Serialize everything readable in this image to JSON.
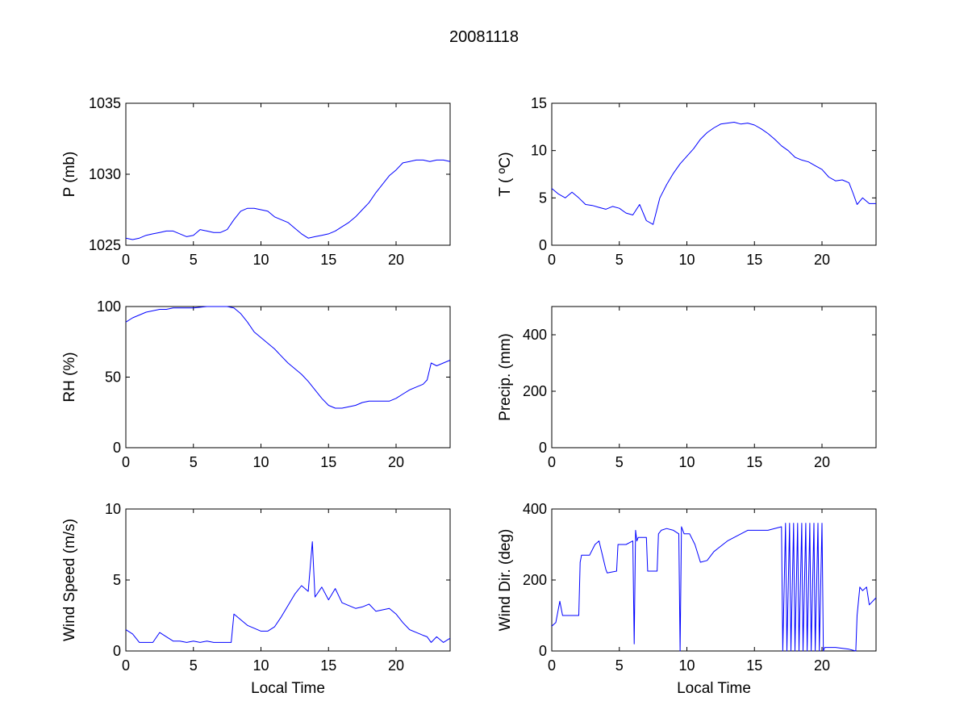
{
  "figure_title": "20081118",
  "line_color": "#0000ff",
  "chart_data": [
    {
      "type": "line",
      "id": "pressure",
      "title": "",
      "xlabel": "",
      "ylabel": "P (mb)",
      "xlim": [
        0,
        24
      ],
      "ylim": [
        1025,
        1035
      ],
      "xticks": [
        0,
        5,
        10,
        15,
        20
      ],
      "yticks": [
        1025,
        1030,
        1035
      ],
      "grid": false,
      "series": [
        {
          "x": [
            0,
            0.5,
            1,
            1.5,
            2,
            2.5,
            3,
            3.5,
            4,
            4.5,
            5,
            5.5,
            6,
            6.5,
            7,
            7.5,
            8,
            8.5,
            9,
            9.5,
            10,
            10.5,
            11,
            11.5,
            12,
            12.5,
            13,
            13.5,
            14,
            14.5,
            15,
            15.5,
            16,
            16.5,
            17,
            17.5,
            18,
            18.5,
            19,
            19.5,
            20,
            20.5,
            21,
            21.5,
            22,
            22.5,
            23,
            23.5,
            24
          ],
          "y": [
            1025.5,
            1025.4,
            1025.5,
            1025.7,
            1025.8,
            1025.9,
            1026.0,
            1026.0,
            1025.8,
            1025.6,
            1025.7,
            1026.1,
            1026.0,
            1025.9,
            1025.9,
            1026.1,
            1026.8,
            1027.4,
            1027.6,
            1027.6,
            1027.5,
            1027.4,
            1027.0,
            1026.8,
            1026.6,
            1026.2,
            1025.8,
            1025.5,
            1025.6,
            1025.7,
            1025.8,
            1026.0,
            1026.3,
            1026.6,
            1027.0,
            1027.5,
            1028.0,
            1028.7,
            1029.3,
            1029.9,
            1030.3,
            1030.8,
            1030.9,
            1031.0,
            1031.0,
            1030.9,
            1031.0,
            1031.0,
            1030.9
          ]
        }
      ]
    },
    {
      "type": "line",
      "id": "temperature",
      "title": "",
      "xlabel": "",
      "ylabel": "T ( ºC)",
      "xlim": [
        0,
        24
      ],
      "ylim": [
        0,
        15
      ],
      "xticks": [
        0,
        5,
        10,
        15,
        20
      ],
      "yticks": [
        0,
        5,
        10,
        15
      ],
      "grid": false,
      "series": [
        {
          "x": [
            0,
            0.5,
            1,
            1.5,
            2,
            2.5,
            3,
            3.5,
            4,
            4.5,
            5,
            5.5,
            6,
            6.5,
            7,
            7.5,
            8,
            8.5,
            9,
            9.5,
            10,
            10.5,
            11,
            11.5,
            12,
            12.5,
            13,
            13.5,
            14,
            14.5,
            15,
            15.5,
            16,
            16.5,
            17,
            17.5,
            18,
            18.5,
            19,
            19.5,
            20,
            20.5,
            21,
            21.5,
            22,
            22.3,
            22.6,
            23,
            23.5,
            24
          ],
          "y": [
            6.0,
            5.4,
            5.0,
            5.6,
            5.0,
            4.3,
            4.2,
            4.0,
            3.8,
            4.1,
            3.9,
            3.4,
            3.2,
            4.3,
            2.6,
            2.2,
            5.0,
            6.4,
            7.6,
            8.6,
            9.4,
            10.2,
            11.2,
            11.9,
            12.4,
            12.8,
            12.9,
            13.0,
            12.8,
            12.9,
            12.7,
            12.3,
            11.8,
            11.2,
            10.5,
            10.0,
            9.3,
            9.0,
            8.8,
            8.4,
            8.0,
            7.2,
            6.8,
            6.9,
            6.6,
            5.5,
            4.3,
            5.0,
            4.4,
            4.4
          ]
        }
      ]
    },
    {
      "type": "line",
      "id": "humidity",
      "title": "",
      "xlabel": "",
      "ylabel": "RH (%)",
      "xlim": [
        0,
        24
      ],
      "ylim": [
        0,
        100
      ],
      "xticks": [
        0,
        5,
        10,
        15,
        20
      ],
      "yticks": [
        0,
        50,
        100
      ],
      "grid": false,
      "series": [
        {
          "x": [
            0,
            0.5,
            1,
            1.5,
            2,
            2.5,
            3,
            3.5,
            4,
            4.5,
            5,
            5.5,
            6,
            6.5,
            7,
            7.5,
            8,
            8.5,
            9,
            9.5,
            10,
            10.5,
            11,
            11.5,
            12,
            12.5,
            13,
            13.5,
            14,
            14.5,
            15,
            15.5,
            16,
            16.5,
            17,
            17.5,
            18,
            18.5,
            19,
            19.5,
            20,
            20.5,
            21,
            21.5,
            22,
            22.3,
            22.6,
            23,
            23.5,
            24
          ],
          "y": [
            89,
            92,
            94,
            96,
            97,
            98,
            98,
            99,
            99,
            99,
            99,
            99.5,
            100,
            100,
            100,
            100,
            99,
            95,
            89,
            82,
            78,
            74,
            70,
            65,
            60,
            56,
            52,
            47,
            41,
            35,
            30,
            28,
            28,
            29,
            30,
            32,
            33,
            33,
            33,
            33,
            35,
            38,
            41,
            43,
            45,
            48,
            60,
            58,
            60,
            62
          ]
        }
      ]
    },
    {
      "type": "line",
      "id": "precipitation",
      "title": "",
      "xlabel": "",
      "ylabel": "Precip. (mm)",
      "xlim": [
        0,
        24
      ],
      "ylim": [
        0,
        500
      ],
      "xticks": [
        0,
        5,
        10,
        15,
        20
      ],
      "yticks": [
        0,
        200,
        400
      ],
      "grid": false,
      "series": []
    },
    {
      "type": "line",
      "id": "wind-speed",
      "title": "",
      "xlabel": "Local Time",
      "ylabel": "Wind Speed (m/s)",
      "xlim": [
        0,
        24
      ],
      "ylim": [
        0,
        10
      ],
      "xticks": [
        0,
        5,
        10,
        15,
        20
      ],
      "yticks": [
        0,
        5,
        10
      ],
      "grid": false,
      "series": [
        {
          "x": [
            0,
            0.5,
            1,
            1.5,
            2,
            2.5,
            3,
            3.5,
            4,
            4.5,
            5,
            5.5,
            6,
            6.5,
            7,
            7.5,
            7.8,
            8,
            8.5,
            9,
            9.5,
            10,
            10.5,
            11,
            11.5,
            12,
            12.5,
            13,
            13.5,
            13.8,
            14,
            14.5,
            15,
            15.5,
            16,
            16.5,
            17,
            17.5,
            18,
            18.5,
            19,
            19.5,
            20,
            20.5,
            21,
            21.5,
            22,
            22.3,
            22.6,
            23,
            23.5,
            24
          ],
          "y": [
            1.5,
            1.2,
            0.6,
            0.6,
            0.6,
            1.3,
            1.0,
            0.7,
            0.7,
            0.6,
            0.7,
            0.6,
            0.7,
            0.6,
            0.6,
            0.6,
            0.6,
            2.6,
            2.2,
            1.8,
            1.6,
            1.4,
            1.4,
            1.7,
            2.4,
            3.2,
            4.0,
            4.6,
            4.2,
            7.7,
            3.8,
            4.5,
            3.6,
            4.4,
            3.4,
            3.2,
            3.0,
            3.1,
            3.3,
            2.8,
            2.9,
            3.0,
            2.6,
            2.0,
            1.5,
            1.3,
            1.1,
            1.0,
            0.6,
            1.0,
            0.6,
            0.9
          ]
        }
      ]
    },
    {
      "type": "line",
      "id": "wind-direction",
      "title": "",
      "xlabel": "Local Time",
      "ylabel": "Wind Dir. (deg)",
      "xlim": [
        0,
        24
      ],
      "ylim": [
        0,
        400
      ],
      "xticks": [
        0,
        5,
        10,
        15,
        20
      ],
      "yticks": [
        0,
        200,
        400
      ],
      "grid": false,
      "series": [
        {
          "x": [
            0,
            0.3,
            0.6,
            0.8,
            1.0,
            2.0,
            2.1,
            2.2,
            2.8,
            3.2,
            3.5,
            4.0,
            4.1,
            4.8,
            4.9,
            5.5,
            6.0,
            6.1,
            6.2,
            6.3,
            6.4,
            7.0,
            7.1,
            7.8,
            7.9,
            8.1,
            8.5,
            9.0,
            9.4,
            9.5,
            9.6,
            9.8,
            10.2,
            10.6,
            11.0,
            11.5,
            12.0,
            13.0,
            14.0,
            14.5,
            15.0,
            16.0,
            17.0,
            17.1,
            17.3,
            17.4,
            17.6,
            17.7,
            17.9,
            18.0,
            18.2,
            18.3,
            18.5,
            18.6,
            18.8,
            18.9,
            19.1,
            19.2,
            19.4,
            19.5,
            19.7,
            19.8,
            20.0,
            20.1,
            20.2,
            20.3,
            21.0,
            22.0,
            22.5,
            22.6,
            22.8,
            23.0,
            23.3,
            23.5,
            24.0
          ],
          "y": [
            70,
            80,
            140,
            100,
            100,
            100,
            250,
            270,
            270,
            300,
            310,
            230,
            220,
            225,
            300,
            300,
            310,
            20,
            340,
            310,
            320,
            320,
            225,
            225,
            330,
            340,
            345,
            340,
            330,
            0,
            350,
            330,
            330,
            300,
            250,
            255,
            280,
            310,
            330,
            340,
            340,
            340,
            350,
            0,
            360,
            0,
            360,
            0,
            360,
            0,
            360,
            0,
            360,
            0,
            360,
            0,
            360,
            0,
            360,
            0,
            360,
            0,
            360,
            0,
            10,
            10,
            10,
            5,
            0,
            100,
            180,
            170,
            180,
            130,
            150
          ]
        }
      ]
    }
  ]
}
